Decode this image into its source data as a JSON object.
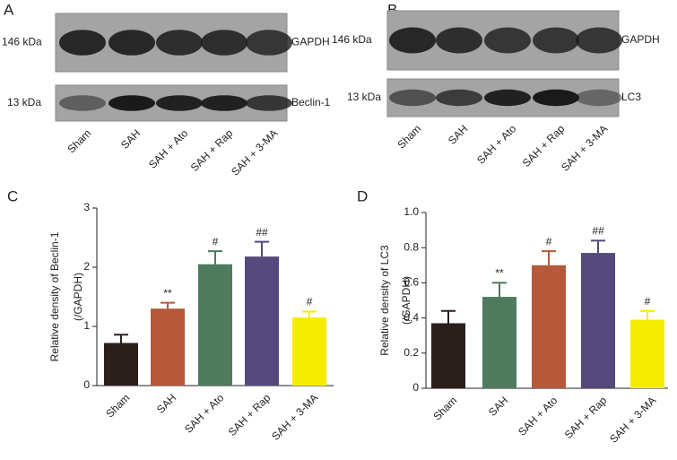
{
  "blots": [
    {
      "letter": "A",
      "rows": [
        {
          "marker": "146 kDa",
          "protein": "GAPDH"
        },
        {
          "marker": "13 kDa",
          "protein": "Beclin-1"
        }
      ],
      "lanes": [
        "Sham",
        "SAH",
        "SAH + Ato",
        "SAH + Rap",
        "SAH + 3-MA"
      ]
    },
    {
      "letter": "B",
      "rows": [
        {
          "marker": "146 kDa",
          "protein": "GAPDH"
        },
        {
          "marker": "13 kDa",
          "protein": "LC3"
        }
      ],
      "lanes": [
        "Sham",
        "SAH",
        "SAH + Ato",
        "SAH + Rap",
        "SAH + 3-MA"
      ]
    }
  ],
  "chart_data": [
    {
      "type": "bar",
      "letter": "C",
      "ylabel": [
        "Relative density of Beclin-1",
        "(/GAPDH)"
      ],
      "categories": [
        "Sham",
        "SAH",
        "SAH + Ato",
        "SAH + Rap",
        "SAH + 3-MA"
      ],
      "values": [
        0.72,
        1.3,
        2.05,
        2.18,
        1.15
      ],
      "errors": [
        0.14,
        0.1,
        0.22,
        0.25,
        0.1
      ],
      "annotations": [
        null,
        "**",
        "#",
        "##",
        "#"
      ],
      "colors": [
        "#2b1f1c",
        "#b5593a",
        "#4e7a5e",
        "#554a7b",
        "#f5ec00"
      ],
      "ylim": [
        0,
        3
      ],
      "yticks": [
        0,
        1,
        2,
        3
      ]
    },
    {
      "type": "bar",
      "letter": "D",
      "ylabel": [
        "Relative density of LC3",
        "(/GAPDH)"
      ],
      "categories": [
        "Sham",
        "SAH",
        "SAH + Ato",
        "SAH + Rap",
        "SAH + 3-MA"
      ],
      "values": [
        0.37,
        0.52,
        0.7,
        0.77,
        0.39
      ],
      "errors": [
        0.07,
        0.08,
        0.08,
        0.07,
        0.05
      ],
      "annotations": [
        null,
        "**",
        "#",
        "##",
        "#"
      ],
      "colors": [
        "#2b1f1c",
        "#4e7a5e",
        "#b5593a",
        "#554a7b",
        "#f5ec00"
      ],
      "ylim": [
        0,
        1
      ],
      "yticks": [
        0,
        0.2,
        0.4,
        0.6,
        0.8,
        {
          "value": 1,
          "label": "1.0"
        }
      ]
    }
  ]
}
